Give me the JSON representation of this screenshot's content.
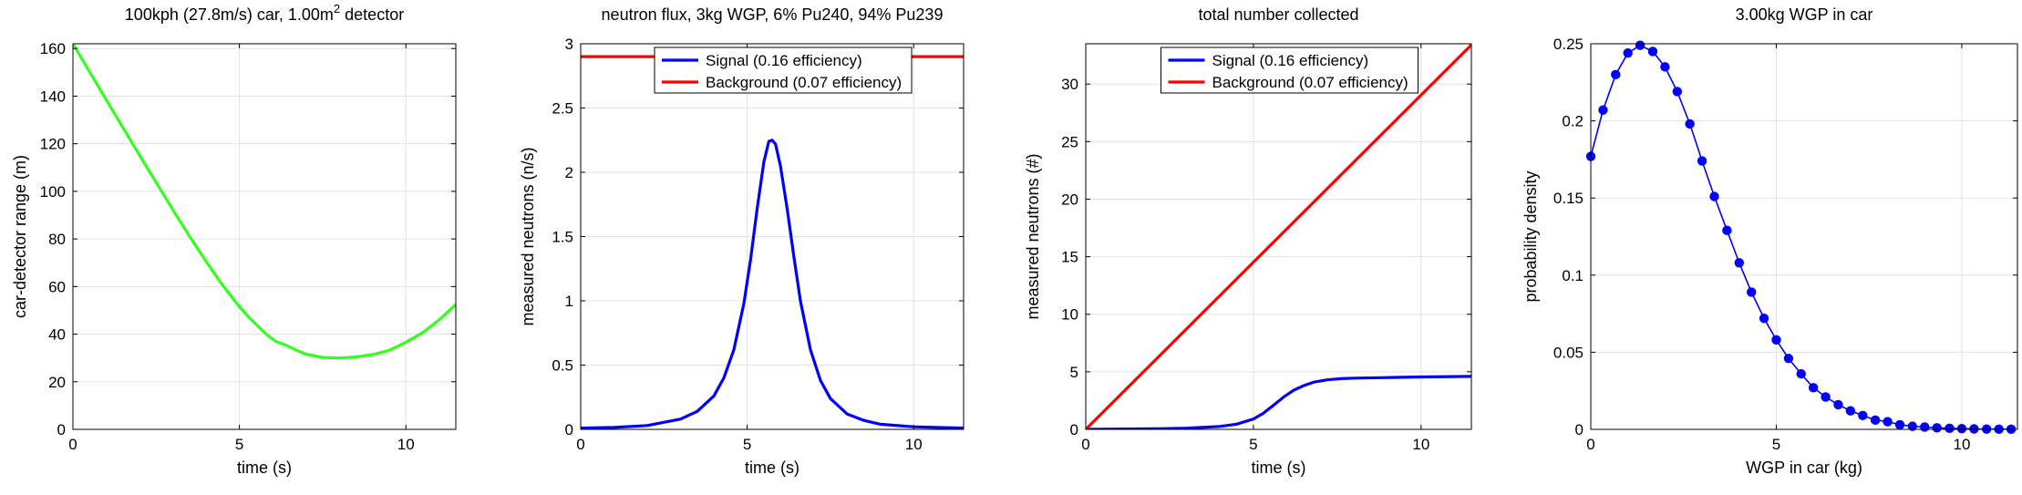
{
  "chart_data": [
    {
      "type": "line",
      "title_main": "100kph (27.8m/s) car,  1.00m",
      "title_sup": "2",
      "title_tail": " detector",
      "xlabel": "time (s)",
      "ylabel": "car-detector range (m)",
      "xlim": [
        0,
        11.5
      ],
      "ylim": [
        0,
        162
      ],
      "xticks": [
        0,
        5,
        10
      ],
      "yticks": [
        0,
        20,
        40,
        60,
        80,
        100,
        120,
        140,
        160
      ],
      "grid": true,
      "series": [
        {
          "color": "#33ff1e",
          "x": [
            0,
            0.5,
            1,
            1.5,
            2,
            2.5,
            3,
            3.5,
            4,
            4.5,
            5,
            5.3,
            5.5,
            5.7,
            5.9,
            6.1,
            6.4,
            6.7,
            7,
            7.5,
            8,
            8.5,
            9,
            9.5,
            10,
            10.5,
            11,
            11.5
          ],
          "y": [
            162,
            150.2,
            138.5,
            126.8,
            115.2,
            103.7,
            92.3,
            81.2,
            70.5,
            60.5,
            51.5,
            46.9,
            44.2,
            41.4,
            38.9,
            36.9,
            35.4,
            33.3,
            31.6,
            30.2,
            30.0,
            30.4,
            31.4,
            33.2,
            36.6,
            40.6,
            46.0,
            52.5
          ]
        }
      ]
    },
    {
      "type": "line",
      "title": "neutron flux,  3kg WGP, 6% Pu240, 94% Pu239",
      "xlabel": "time (s)",
      "ylabel": "measured neutrons (n/s)",
      "xlim": [
        0,
        11.5
      ],
      "ylim": [
        0,
        3
      ],
      "xticks": [
        0,
        5,
        10
      ],
      "yticks": [
        0,
        0.5,
        1,
        1.5,
        2,
        2.5,
        3
      ],
      "ytick_labels": [
        "0",
        "0.5",
        "1",
        "1.5",
        "2",
        "2.5",
        "3"
      ],
      "grid": true,
      "legend": "top",
      "series": [
        {
          "name": "Signal (0.16 efficiency)",
          "color": "#0000ff",
          "x": [
            0,
            1,
            2,
            3,
            3.5,
            4,
            4.3,
            4.6,
            4.9,
            5.1,
            5.3,
            5.5,
            5.65,
            5.75,
            5.85,
            6.0,
            6.2,
            6.4,
            6.6,
            6.9,
            7.2,
            7.5,
            8,
            8.5,
            9,
            10,
            11.5
          ],
          "y": [
            0.01,
            0.015,
            0.03,
            0.08,
            0.14,
            0.26,
            0.4,
            0.62,
            0.98,
            1.32,
            1.72,
            2.08,
            2.24,
            2.25,
            2.22,
            2.05,
            1.72,
            1.35,
            1.0,
            0.62,
            0.38,
            0.24,
            0.12,
            0.07,
            0.04,
            0.02,
            0.01
          ]
        },
        {
          "name": "Background (0.07 efficiency)",
          "color": "#ff0000",
          "x": [
            0,
            11.5
          ],
          "y": [
            2.9,
            2.9
          ]
        }
      ]
    },
    {
      "type": "line",
      "title": "total number collected",
      "xlabel": "time (s)",
      "ylabel": "measured neutrons (#)",
      "xlim": [
        0,
        11.5
      ],
      "ylim": [
        0,
        33.5
      ],
      "xticks": [
        0,
        5,
        10
      ],
      "yticks": [
        0,
        5,
        10,
        15,
        20,
        25,
        30
      ],
      "grid": true,
      "legend": "top",
      "series": [
        {
          "name": "Signal (0.16 efficiency)",
          "color": "#0000ff",
          "x": [
            0,
            2,
            3,
            4,
            4.5,
            5,
            5.3,
            5.6,
            5.9,
            6.2,
            6.5,
            6.8,
            7.2,
            7.6,
            8,
            9,
            10,
            11.5
          ],
          "y": [
            0,
            0.05,
            0.1,
            0.25,
            0.45,
            0.9,
            1.4,
            2.1,
            2.8,
            3.4,
            3.8,
            4.1,
            4.3,
            4.4,
            4.45,
            4.5,
            4.55,
            4.6
          ]
        },
        {
          "name": "Background (0.07 efficiency)",
          "color": "#ff0000",
          "x": [
            0,
            11.5
          ],
          "y": [
            0,
            33.4
          ]
        }
      ]
    },
    {
      "type": "line",
      "title": "3.00kg WGP in car",
      "xlabel": "WGP in car (kg)",
      "ylabel": "probability density",
      "xlim": [
        0,
        11.5
      ],
      "ylim": [
        0,
        0.25
      ],
      "xticks": [
        0,
        5,
        10
      ],
      "yticks": [
        0,
        0.05,
        0.1,
        0.15,
        0.2,
        0.25
      ],
      "ytick_labels": [
        "0",
        "0.05",
        "0.1",
        "0.15",
        "0.2",
        "0.25"
      ],
      "grid": true,
      "series": [
        {
          "color": "#0000ff",
          "markers": true,
          "x": [
            0,
            0.33,
            0.67,
            1.0,
            1.33,
            1.67,
            2.0,
            2.33,
            2.67,
            3.0,
            3.33,
            3.67,
            4.0,
            4.33,
            4.67,
            5.0,
            5.33,
            5.67,
            6.0,
            6.33,
            6.67,
            7.0,
            7.33,
            7.67,
            8.0,
            8.33,
            8.67,
            9.0,
            9.33,
            9.67,
            10.0,
            10.33,
            10.67,
            11.0,
            11.33
          ],
          "y": [
            0.177,
            0.207,
            0.23,
            0.244,
            0.249,
            0.245,
            0.235,
            0.219,
            0.198,
            0.174,
            0.151,
            0.129,
            0.108,
            0.089,
            0.072,
            0.058,
            0.046,
            0.036,
            0.027,
            0.021,
            0.016,
            0.012,
            0.009,
            0.006,
            0.005,
            0.003,
            0.002,
            0.0015,
            0.001,
            0.0007,
            0.0005,
            0.0003,
            0.0002,
            0.0001,
            0.0001
          ]
        }
      ]
    }
  ]
}
